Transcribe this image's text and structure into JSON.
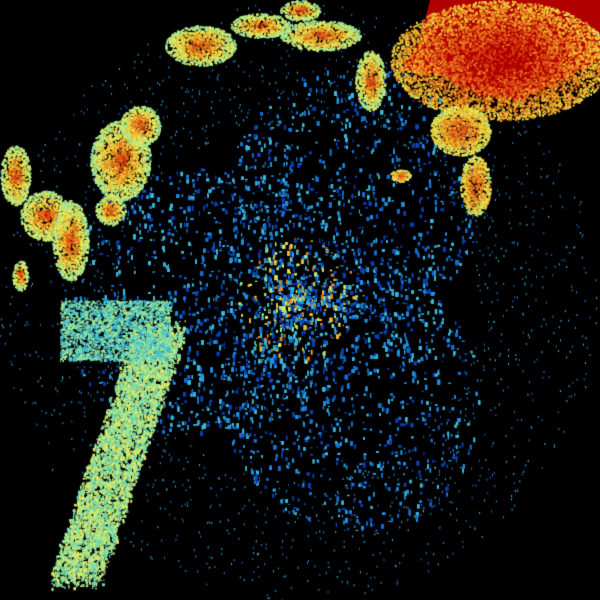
{
  "image": {
    "background": "#000000",
    "palette": [
      "#0a3fb0",
      "#1570d0",
      "#1e90e0",
      "#3cb8d8",
      "#70d8b0",
      "#a8e890",
      "#e0e860",
      "#f0c030",
      "#e88020",
      "#d84010",
      "#b00000"
    ]
  }
}
